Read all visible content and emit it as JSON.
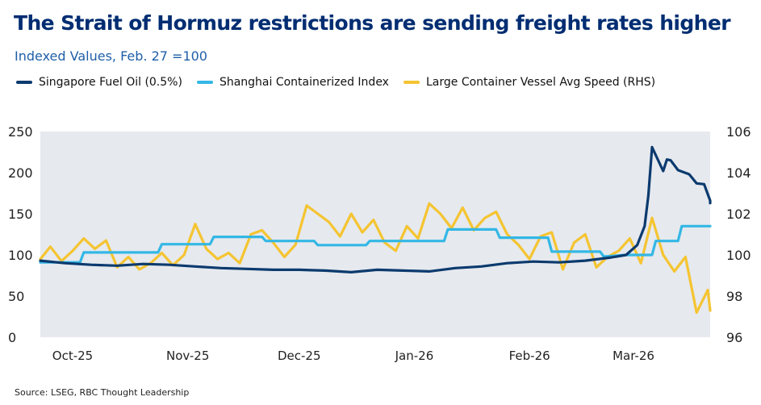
{
  "title": "The Strait of Hormuz restrictions are sending freight rates higher",
  "subtitle": "Indexed Values, Feb. 27 =100",
  "source": "Source: LSEG, RBC Thought Leadership",
  "chart_data": {
    "type": "line",
    "title": "The Strait of Hormuz restrictions are sending freight rates higher",
    "subtitle": "Indexed Values, Feb. 27 =100",
    "x_tick_labels": [
      "Oct-25",
      "Nov-25",
      "Dec-25",
      "Jan-26",
      "Feb-26",
      "Mar-26"
    ],
    "y_left": {
      "ticks": [
        0,
        50,
        100,
        150,
        200,
        250
      ],
      "range": [
        0,
        250
      ]
    },
    "y_right": {
      "ticks": [
        96,
        98,
        100,
        102,
        104,
        106
      ],
      "range": [
        96,
        106
      ]
    },
    "grid": false,
    "background": "#e6e9ee",
    "legend": {
      "position": "top"
    },
    "series": [
      {
        "name": "Singapore Fuel Oil (0.5%)",
        "color": "#0b3a6e",
        "axis": "left",
        "x": [
          "2025-09-22",
          "2025-09-29",
          "2025-10-06",
          "2025-10-13",
          "2025-10-20",
          "2025-10-27",
          "2025-11-03",
          "2025-11-10",
          "2025-11-17",
          "2025-11-24",
          "2025-12-01",
          "2025-12-08",
          "2025-12-15",
          "2025-12-22",
          "2025-12-29",
          "2026-01-05",
          "2026-01-12",
          "2026-01-19",
          "2026-01-26",
          "2026-02-02",
          "2026-02-09",
          "2026-02-16",
          "2026-02-23",
          "2026-02-27",
          "2026-03-02",
          "2026-03-04",
          "2026-03-05",
          "2026-03-06",
          "2026-03-09",
          "2026-03-10",
          "2026-03-11",
          "2026-03-13",
          "2026-03-16",
          "2026-03-18",
          "2026-03-20",
          "2026-03-23",
          "2026-03-24"
        ],
        "y": [
          93,
          90,
          88,
          87,
          89,
          88,
          86,
          84,
          83,
          82,
          82,
          81,
          79,
          82,
          81,
          80,
          84,
          86,
          90,
          92,
          91,
          93,
          97,
          100,
          112,
          135,
          172,
          231,
          202,
          216,
          215,
          203,
          198,
          187,
          186,
          166,
          163
        ]
      },
      {
        "name": "Shanghai Containerized Index",
        "color": "#33b7e5",
        "axis": "left",
        "x": [
          "2025-09-22",
          "2025-10-03",
          "2025-10-04",
          "2025-10-24",
          "2025-10-25",
          "2025-11-07",
          "2025-11-08",
          "2025-11-21",
          "2025-11-22",
          "2025-12-05",
          "2025-12-06",
          "2025-12-19",
          "2025-12-20",
          "2026-01-09",
          "2026-01-10",
          "2026-01-23",
          "2026-01-24",
          "2026-02-06",
          "2026-02-07",
          "2026-02-20",
          "2026-02-21",
          "2026-02-27",
          "2026-03-06",
          "2026-03-07",
          "2026-03-13",
          "2026-03-14",
          "2026-03-24"
        ],
        "y": [
          91,
          91,
          103,
          103,
          113,
          113,
          122,
          122,
          117,
          117,
          112,
          112,
          117,
          117,
          131,
          131,
          121,
          121,
          104,
          104,
          98,
          100,
          100,
          117,
          117,
          135,
          135
        ]
      },
      {
        "name": "Large Container Vessel Avg Speed (RHS)",
        "color": "#f5c431",
        "axis": "right",
        "x": [
          "2025-09-22",
          "2025-09-25",
          "2025-09-28",
          "2025-10-01",
          "2025-10-04",
          "2025-10-07",
          "2025-10-10",
          "2025-10-13",
          "2025-10-16",
          "2025-10-19",
          "2025-10-22",
          "2025-10-25",
          "2025-10-28",
          "2025-10-31",
          "2025-11-03",
          "2025-11-06",
          "2025-11-09",
          "2025-11-12",
          "2025-11-15",
          "2025-11-18",
          "2025-11-21",
          "2025-11-24",
          "2025-11-27",
          "2025-11-30",
          "2025-12-03",
          "2025-12-06",
          "2025-12-09",
          "2025-12-12",
          "2025-12-15",
          "2025-12-18",
          "2025-12-21",
          "2025-12-24",
          "2025-12-27",
          "2025-12-30",
          "2026-01-02",
          "2026-01-05",
          "2026-01-08",
          "2026-01-11",
          "2026-01-14",
          "2026-01-17",
          "2026-01-20",
          "2026-01-23",
          "2026-01-26",
          "2026-01-29",
          "2026-02-01",
          "2026-02-04",
          "2026-02-07",
          "2026-02-10",
          "2026-02-13",
          "2026-02-16",
          "2026-02-19",
          "2026-02-22",
          "2026-02-25",
          "2026-02-28",
          "2026-03-03",
          "2026-03-06",
          "2026-03-09",
          "2026-03-12",
          "2026-03-15",
          "2026-03-18",
          "2026-03-21",
          "2026-03-24"
        ],
        "y": [
          99.8,
          100.4,
          99.7,
          100.2,
          100.8,
          100.3,
          100.7,
          99.4,
          99.9,
          99.3,
          99.6,
          100.1,
          99.5,
          100.0,
          101.5,
          100.3,
          99.8,
          100.1,
          99.6,
          101.0,
          101.2,
          100.6,
          99.9,
          100.5,
          102.4,
          102.0,
          101.6,
          100.9,
          102.0,
          101.1,
          101.7,
          100.6,
          100.2,
          101.4,
          100.8,
          102.5,
          102.0,
          101.3,
          102.3,
          101.2,
          101.8,
          102.1,
          101.0,
          100.5,
          99.8,
          100.9,
          101.1,
          99.3,
          100.6,
          101.0,
          99.4,
          99.9,
          100.2,
          100.8,
          99.6,
          101.8,
          100.0,
          99.2,
          99.9,
          97.2,
          98.3,
          97.3
        ]
      }
    ]
  }
}
